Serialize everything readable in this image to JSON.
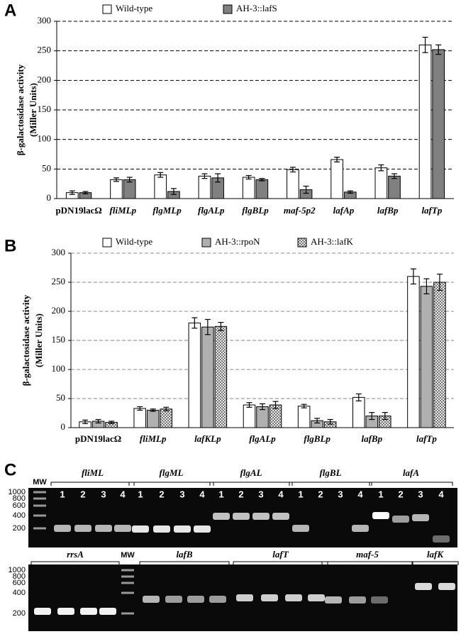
{
  "chart_data": [
    {
      "type": "bar",
      "panel": "A",
      "y_label": [
        "β-galactosidase activity",
        "(Miller Units)"
      ],
      "categories": [
        "pDN19lacΩ",
        "fliMLp",
        "flgMLp",
        "flgALp",
        "flgBLp",
        "maf-5p2",
        "lafAp",
        "lafBp",
        "lafTp"
      ],
      "series": [
        {
          "name": "Wild-type",
          "color": "#ffffff",
          "values": [
            10,
            32,
            40,
            38,
            36,
            49,
            66,
            52,
            260
          ],
          "errors": [
            3,
            3,
            4,
            4,
            3,
            4,
            4,
            5,
            13
          ]
        },
        {
          "name": "AH-3::lafS",
          "color": "#808080",
          "values": [
            10,
            32,
            12,
            35,
            32,
            15,
            11,
            38,
            252
          ],
          "errors": [
            2,
            4,
            5,
            7,
            2,
            6,
            2,
            4,
            8
          ]
        }
      ],
      "ylim": [
        0,
        300
      ],
      "yticks": [
        0,
        50,
        100,
        150,
        200,
        250,
        300
      ],
      "grid": true,
      "grid_color": "#000000"
    },
    {
      "type": "bar",
      "panel": "B",
      "y_label": [
        "β-galactosidase activity",
        "(Miller Units)"
      ],
      "categories": [
        "pDN19lacΩ",
        "fliMLp",
        "lafKLp",
        "flgALp",
        "flgBLp",
        "lafBp",
        "lafTp"
      ],
      "series": [
        {
          "name": "Wild-type",
          "color": "#ffffff",
          "values": [
            10,
            33,
            180,
            39,
            37,
            52,
            260
          ],
          "errors": [
            3,
            3,
            9,
            4,
            3,
            6,
            13
          ]
        },
        {
          "name": "AH-3::rpoN",
          "color": "#b0b0b0",
          "values": [
            11,
            30,
            173,
            36,
            12,
            20,
            243
          ],
          "errors": [
            3,
            2,
            13,
            5,
            4,
            6,
            13
          ]
        },
        {
          "name": "AH-3::lafK",
          "color": "#d0d0d0",
          "pattern": "checker",
          "values": [
            9,
            32,
            174,
            39,
            10,
            20,
            250
          ],
          "errors": [
            2,
            3,
            7,
            6,
            4,
            6,
            14
          ]
        }
      ],
      "ylim": [
        0,
        300
      ],
      "yticks": [
        0,
        50,
        100,
        150,
        200,
        250,
        300
      ],
      "grid": true,
      "grid_color": "#888888"
    }
  ],
  "gel": {
    "panel": "C",
    "top": {
      "mw": "MW",
      "ladder": [
        1000,
        800,
        600,
        400,
        200
      ],
      "groups": [
        {
          "label": "fliML",
          "lanes": [
            1,
            2,
            3,
            4
          ]
        },
        {
          "label": "flgML",
          "lanes": [
            1,
            2,
            3,
            4
          ]
        },
        {
          "label": "flgAL",
          "lanes": [
            1,
            2,
            3,
            4
          ]
        },
        {
          "label": "flgBL",
          "lanes": [
            1,
            2,
            3,
            4
          ]
        },
        {
          "label": "lafA",
          "lanes": [
            1,
            2,
            3,
            4
          ]
        }
      ]
    },
    "bottom": {
      "mw": "MW",
      "ladder": [
        1000,
        800,
        600,
        400,
        200
      ],
      "groups": [
        {
          "label": "rrsA"
        },
        {
          "label": "lafB"
        },
        {
          "label": "lafT"
        },
        {
          "label": "maf-5"
        },
        {
          "label": "lafK"
        }
      ]
    }
  }
}
